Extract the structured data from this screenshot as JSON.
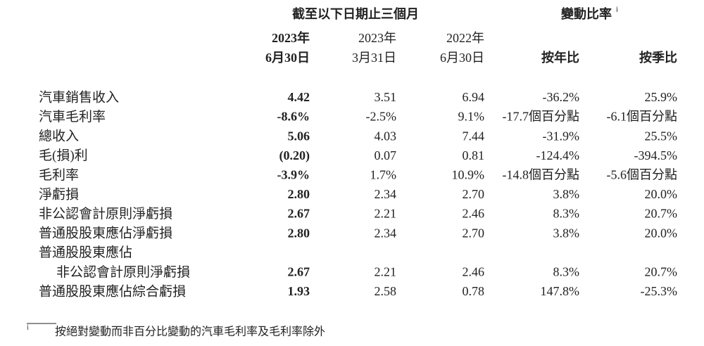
{
  "header": {
    "group_title": "截至以下日期止三個月",
    "change_title": "變動比率",
    "change_note_mark": "i",
    "columns": [
      {
        "line1": "2023年",
        "line2": "6月30日"
      },
      {
        "line1": "2023年",
        "line2": "3月31日"
      },
      {
        "line1": "2022年",
        "line2": "6月30日"
      },
      {
        "line2": "按年比"
      },
      {
        "line2": "按季比"
      }
    ]
  },
  "table": {
    "rows": [
      {
        "label": "汽車銷售收入",
        "cells": [
          "4.42",
          "3.51",
          "6.94",
          "-36.2%",
          "25.9%"
        ]
      },
      {
        "label": "汽車毛利率",
        "cells": [
          "-8.6%",
          "-2.5%",
          "9.1%",
          "-17.7個百分點",
          "-6.1個百分點"
        ]
      },
      {
        "label": "總收入",
        "cells": [
          "5.06",
          "4.03",
          "7.44",
          "-31.9%",
          "25.5%"
        ]
      },
      {
        "label": "毛(損)利",
        "cells": [
          "(0.20)",
          "0.07",
          "0.81",
          "-124.4%",
          "-394.5%"
        ]
      },
      {
        "label": "毛利率",
        "cells": [
          "-3.9%",
          "1.7%",
          "10.9%",
          "-14.8個百分點",
          "-5.6個百分點"
        ]
      },
      {
        "label": "淨虧損",
        "cells": [
          "2.80",
          "2.34",
          "2.70",
          "3.8%",
          "20.0%"
        ]
      },
      {
        "label": "非公認會計原則淨虧損",
        "cells": [
          "2.67",
          "2.21",
          "2.46",
          "8.3%",
          "20.7%"
        ]
      },
      {
        "label": "普通股股東應佔淨虧損",
        "cells": [
          "2.80",
          "2.34",
          "2.70",
          "3.8%",
          "20.0%"
        ]
      },
      {
        "label": "普通股股東應佔"
      },
      {
        "label": "非公認會計原則淨虧損",
        "indent": true,
        "cells": [
          "2.67",
          "2.21",
          "2.46",
          "8.3%",
          "20.7%"
        ]
      },
      {
        "label": "普通股股東應佔綜合虧損",
        "cells": [
          "1.93",
          "2.58",
          "0.78",
          "147.8%",
          "-25.3%"
        ]
      }
    ]
  },
  "footnote": {
    "mark": "i",
    "text": "按絕對變動而非百分比變動的汽車毛利率及毛利率除外"
  }
}
